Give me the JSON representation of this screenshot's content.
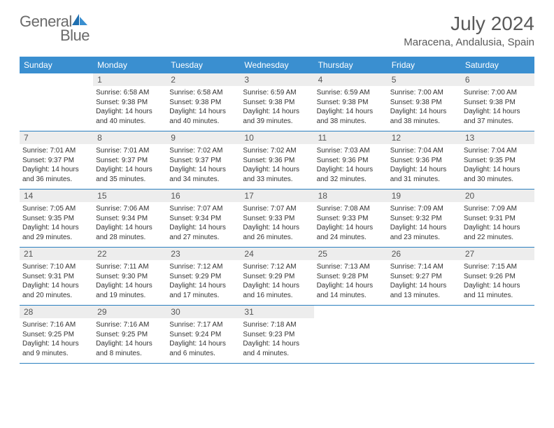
{
  "logo": {
    "text1": "General",
    "text2": "Blue"
  },
  "title": "July 2024",
  "location": "Maracena, Andalusia, Spain",
  "colors": {
    "header_bg": "#3a8fd0",
    "divider": "#2a7fbf",
    "daynum_bg": "#ededed",
    "text": "#333333"
  },
  "weekdays": [
    "Sunday",
    "Monday",
    "Tuesday",
    "Wednesday",
    "Thursday",
    "Friday",
    "Saturday"
  ],
  "weeks": [
    [
      {
        "n": "",
        "sr": "",
        "ss": "",
        "dl": ""
      },
      {
        "n": "1",
        "sr": "Sunrise: 6:58 AM",
        "ss": "Sunset: 9:38 PM",
        "dl": "Daylight: 14 hours and 40 minutes."
      },
      {
        "n": "2",
        "sr": "Sunrise: 6:58 AM",
        "ss": "Sunset: 9:38 PM",
        "dl": "Daylight: 14 hours and 40 minutes."
      },
      {
        "n": "3",
        "sr": "Sunrise: 6:59 AM",
        "ss": "Sunset: 9:38 PM",
        "dl": "Daylight: 14 hours and 39 minutes."
      },
      {
        "n": "4",
        "sr": "Sunrise: 6:59 AM",
        "ss": "Sunset: 9:38 PM",
        "dl": "Daylight: 14 hours and 38 minutes."
      },
      {
        "n": "5",
        "sr": "Sunrise: 7:00 AM",
        "ss": "Sunset: 9:38 PM",
        "dl": "Daylight: 14 hours and 38 minutes."
      },
      {
        "n": "6",
        "sr": "Sunrise: 7:00 AM",
        "ss": "Sunset: 9:38 PM",
        "dl": "Daylight: 14 hours and 37 minutes."
      }
    ],
    [
      {
        "n": "7",
        "sr": "Sunrise: 7:01 AM",
        "ss": "Sunset: 9:37 PM",
        "dl": "Daylight: 14 hours and 36 minutes."
      },
      {
        "n": "8",
        "sr": "Sunrise: 7:01 AM",
        "ss": "Sunset: 9:37 PM",
        "dl": "Daylight: 14 hours and 35 minutes."
      },
      {
        "n": "9",
        "sr": "Sunrise: 7:02 AM",
        "ss": "Sunset: 9:37 PM",
        "dl": "Daylight: 14 hours and 34 minutes."
      },
      {
        "n": "10",
        "sr": "Sunrise: 7:02 AM",
        "ss": "Sunset: 9:36 PM",
        "dl": "Daylight: 14 hours and 33 minutes."
      },
      {
        "n": "11",
        "sr": "Sunrise: 7:03 AM",
        "ss": "Sunset: 9:36 PM",
        "dl": "Daylight: 14 hours and 32 minutes."
      },
      {
        "n": "12",
        "sr": "Sunrise: 7:04 AM",
        "ss": "Sunset: 9:36 PM",
        "dl": "Daylight: 14 hours and 31 minutes."
      },
      {
        "n": "13",
        "sr": "Sunrise: 7:04 AM",
        "ss": "Sunset: 9:35 PM",
        "dl": "Daylight: 14 hours and 30 minutes."
      }
    ],
    [
      {
        "n": "14",
        "sr": "Sunrise: 7:05 AM",
        "ss": "Sunset: 9:35 PM",
        "dl": "Daylight: 14 hours and 29 minutes."
      },
      {
        "n": "15",
        "sr": "Sunrise: 7:06 AM",
        "ss": "Sunset: 9:34 PM",
        "dl": "Daylight: 14 hours and 28 minutes."
      },
      {
        "n": "16",
        "sr": "Sunrise: 7:07 AM",
        "ss": "Sunset: 9:34 PM",
        "dl": "Daylight: 14 hours and 27 minutes."
      },
      {
        "n": "17",
        "sr": "Sunrise: 7:07 AM",
        "ss": "Sunset: 9:33 PM",
        "dl": "Daylight: 14 hours and 26 minutes."
      },
      {
        "n": "18",
        "sr": "Sunrise: 7:08 AM",
        "ss": "Sunset: 9:33 PM",
        "dl": "Daylight: 14 hours and 24 minutes."
      },
      {
        "n": "19",
        "sr": "Sunrise: 7:09 AM",
        "ss": "Sunset: 9:32 PM",
        "dl": "Daylight: 14 hours and 23 minutes."
      },
      {
        "n": "20",
        "sr": "Sunrise: 7:09 AM",
        "ss": "Sunset: 9:31 PM",
        "dl": "Daylight: 14 hours and 22 minutes."
      }
    ],
    [
      {
        "n": "21",
        "sr": "Sunrise: 7:10 AM",
        "ss": "Sunset: 9:31 PM",
        "dl": "Daylight: 14 hours and 20 minutes."
      },
      {
        "n": "22",
        "sr": "Sunrise: 7:11 AM",
        "ss": "Sunset: 9:30 PM",
        "dl": "Daylight: 14 hours and 19 minutes."
      },
      {
        "n": "23",
        "sr": "Sunrise: 7:12 AM",
        "ss": "Sunset: 9:29 PM",
        "dl": "Daylight: 14 hours and 17 minutes."
      },
      {
        "n": "24",
        "sr": "Sunrise: 7:12 AM",
        "ss": "Sunset: 9:29 PM",
        "dl": "Daylight: 14 hours and 16 minutes."
      },
      {
        "n": "25",
        "sr": "Sunrise: 7:13 AM",
        "ss": "Sunset: 9:28 PM",
        "dl": "Daylight: 14 hours and 14 minutes."
      },
      {
        "n": "26",
        "sr": "Sunrise: 7:14 AM",
        "ss": "Sunset: 9:27 PM",
        "dl": "Daylight: 14 hours and 13 minutes."
      },
      {
        "n": "27",
        "sr": "Sunrise: 7:15 AM",
        "ss": "Sunset: 9:26 PM",
        "dl": "Daylight: 14 hours and 11 minutes."
      }
    ],
    [
      {
        "n": "28",
        "sr": "Sunrise: 7:16 AM",
        "ss": "Sunset: 9:25 PM",
        "dl": "Daylight: 14 hours and 9 minutes."
      },
      {
        "n": "29",
        "sr": "Sunrise: 7:16 AM",
        "ss": "Sunset: 9:25 PM",
        "dl": "Daylight: 14 hours and 8 minutes."
      },
      {
        "n": "30",
        "sr": "Sunrise: 7:17 AM",
        "ss": "Sunset: 9:24 PM",
        "dl": "Daylight: 14 hours and 6 minutes."
      },
      {
        "n": "31",
        "sr": "Sunrise: 7:18 AM",
        "ss": "Sunset: 9:23 PM",
        "dl": "Daylight: 14 hours and 4 minutes."
      },
      {
        "n": "",
        "sr": "",
        "ss": "",
        "dl": ""
      },
      {
        "n": "",
        "sr": "",
        "ss": "",
        "dl": ""
      },
      {
        "n": "",
        "sr": "",
        "ss": "",
        "dl": ""
      }
    ]
  ]
}
